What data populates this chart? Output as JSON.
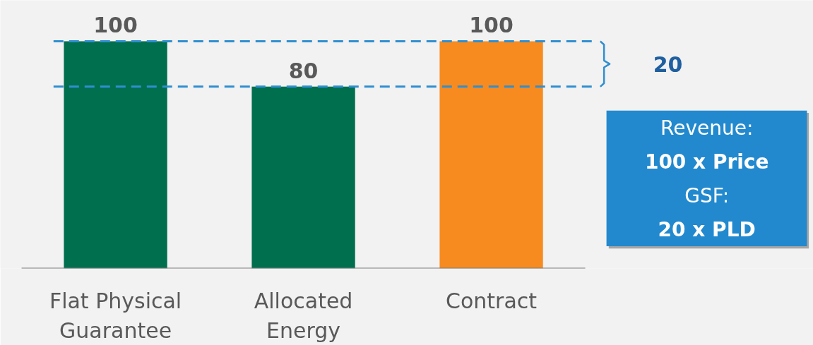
{
  "chart_data": {
    "type": "bar",
    "categories": [
      "Flat Physical Guarantee",
      "Allocated Energy",
      "Contract"
    ],
    "values": [
      100,
      80,
      100
    ],
    "colors": [
      "#006f4e",
      "#006f4e",
      "#f78b1f"
    ],
    "data_labels": true,
    "ylim": [
      0,
      118
    ],
    "tick_labels": "x",
    "grid": false,
    "ref_lines": [
      {
        "axis": "y",
        "value": 100,
        "color": "#2f8fd0",
        "line_style": "dashed"
      },
      {
        "axis": "y",
        "value": 80,
        "color": "#2f8fd0",
        "line_style": "dashed"
      }
    ],
    "annotations": [
      "20",
      "Revenue:",
      "100 x Price",
      "GSF:",
      "20 x PLD"
    ]
  }
}
